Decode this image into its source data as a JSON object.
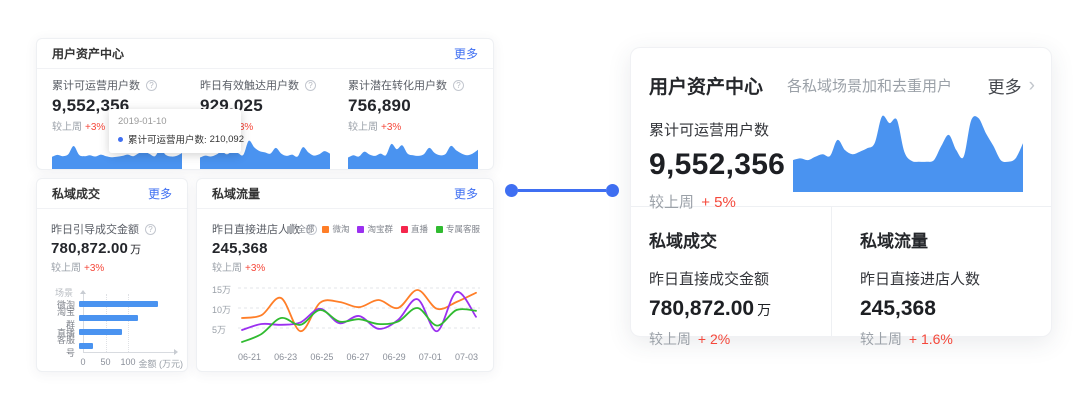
{
  "colors": {
    "accent_blue": "#3f6ff2",
    "chart_blue": "#4a93f0",
    "delta_red": "#f5483b",
    "line_orange": "#ff7e28",
    "line_purple": "#9b30f0",
    "line_green": "#30bb30",
    "legend_gray": "#b0b3b8",
    "legend_red": "#f5264c"
  },
  "overview": {
    "assets_card": {
      "title": "用户资产中心",
      "more_label": "更多",
      "metrics": [
        {
          "label": "累计可运营用户数",
          "value": "9,552,356",
          "delta_label": "较上周",
          "delta": "+3%"
        },
        {
          "label": "昨日有效触达用户数",
          "value": "929,025",
          "delta_label": "较上周",
          "delta": "+3%"
        },
        {
          "label": "累计潜在转化用户数",
          "value": "756,890",
          "delta_label": "较上周",
          "delta": "+3%"
        }
      ],
      "tooltip": {
        "date": "2019-01-10",
        "series_label": "累计可运营用户数:",
        "value": "210,092"
      }
    },
    "deal_card": {
      "title": "私域成交",
      "more_label": "更多",
      "metric_label": "昨日引导成交金额",
      "value": "780,872.00",
      "unit": "万",
      "delta_label": "较上周",
      "delta": "+3%"
    },
    "traffic_card": {
      "title": "私域流量",
      "more_label": "更多",
      "metric_label": "昨日直接进店人数",
      "value": "245,368",
      "delta_label": "较上周",
      "delta": "+3%"
    }
  },
  "detail_card": {
    "title": "用户资产中心",
    "subtitle": "各私域场景加和去重用户",
    "more_label": "更多",
    "chevron": "›",
    "metric_label": "累计可运营用户数",
    "value": "9,552,356",
    "delta_label": "较上周",
    "delta": "+ 5%",
    "sections": [
      {
        "title": "私域成交",
        "metric_label": "昨日直接成交金额",
        "value": "780,872.00",
        "unit": "万",
        "delta_label": "较上周",
        "delta": "+ 2%"
      },
      {
        "title": "私域流量",
        "metric_label": "昨日直接进店人数",
        "value": "245,368",
        "unit": "",
        "delta_label": "较上周",
        "delta": "+ 1.6%"
      }
    ]
  },
  "chart_data": [
    {
      "id": "spark_operational",
      "type": "area",
      "label": "累计可运营用户数趋势",
      "color": "#4a93f0",
      "known_point": {
        "date": "2019-01-10",
        "series": "累计可运营用户数",
        "value": 210092
      },
      "values_pct": [
        38,
        44,
        40,
        46,
        72,
        44,
        40,
        43,
        39,
        45,
        40,
        37,
        38,
        41,
        45,
        40,
        49,
        56,
        47,
        40,
        62,
        44,
        39,
        41,
        50
      ]
    },
    {
      "id": "spark_reached",
      "type": "area",
      "label": "昨日有效触达用户数趋势",
      "color": "#4a93f0",
      "values_pct": [
        36,
        42,
        39,
        45,
        54,
        46,
        56,
        50,
        44,
        88,
        68,
        56,
        52,
        48,
        66,
        48,
        41,
        45,
        39,
        68,
        52,
        42,
        46,
        56,
        48
      ]
    },
    {
      "id": "spark_potential",
      "type": "area",
      "label": "累计潜在转化用户数趋势",
      "color": "#4a93f0",
      "values_pct": [
        36,
        43,
        39,
        54,
        45,
        41,
        48,
        43,
        78,
        62,
        74,
        48,
        43,
        41,
        46,
        66,
        50,
        43,
        47,
        72,
        58,
        48,
        43,
        48,
        60
      ]
    },
    {
      "id": "deal_bar",
      "type": "bar",
      "ylabel": "场景",
      "xlabel": "金额 (万元)",
      "color": "#4a93f0",
      "categories": [
        "微淘",
        "淘宝群",
        "直播",
        "客服号"
      ],
      "values": [
        175,
        130,
        95,
        30
      ],
      "xticks": [
        0,
        50,
        100
      ]
    },
    {
      "id": "traffic_line",
      "type": "line",
      "ymax": 16,
      "legend": [
        {
          "label": "全部",
          "color": "#b0b3b8"
        },
        {
          "label": "微淘",
          "color": "#ff7e28"
        },
        {
          "label": "淘宝群",
          "color": "#9b30f0"
        },
        {
          "label": "直播",
          "color": "#f5264c"
        },
        {
          "label": "专属客服",
          "color": "#30bb30"
        }
      ],
      "y_ticks": [
        {
          "label": "5万",
          "value": 5
        },
        {
          "label": "10万",
          "value": 10
        },
        {
          "label": "15万",
          "value": 15
        }
      ],
      "x_ticks": [
        "06-21",
        "06-23",
        "06-25",
        "06-27",
        "06-29",
        "07-01",
        "07-03"
      ],
      "series": [
        {
          "name": "微淘",
          "color": "#ff7e28",
          "values": [
            7.5,
            8.2,
            12.5,
            4.2,
            11.3,
            11.5,
            10.2,
            12.0,
            10.0,
            14.5,
            9.8,
            11.5,
            13.8
          ]
        },
        {
          "name": "淘宝群",
          "color": "#9b30f0",
          "values": [
            4.5,
            6.0,
            5.8,
            6.4,
            9.8,
            6.2,
            8.0,
            4.8,
            7.0,
            12.2,
            4.2,
            14.0,
            7.8
          ]
        },
        {
          "name": "专属客服",
          "color": "#30bb30",
          "values": [
            1.5,
            3.5,
            7.5,
            5.8,
            9.5,
            6.6,
            7.2,
            6.0,
            6.6,
            10.0,
            5.6,
            9.5,
            9.3
          ]
        }
      ]
    },
    {
      "id": "detail_area",
      "type": "area",
      "label": "累计可运营用户数趋势",
      "color": "#4a93f0",
      "values_pct": [
        38,
        40,
        38,
        42,
        45,
        43,
        62,
        50,
        45,
        48,
        52,
        58,
        90,
        82,
        86,
        48,
        37,
        36,
        36,
        38,
        55,
        68,
        50,
        42,
        85,
        88,
        70,
        55,
        38,
        36,
        40,
        58
      ]
    }
  ]
}
